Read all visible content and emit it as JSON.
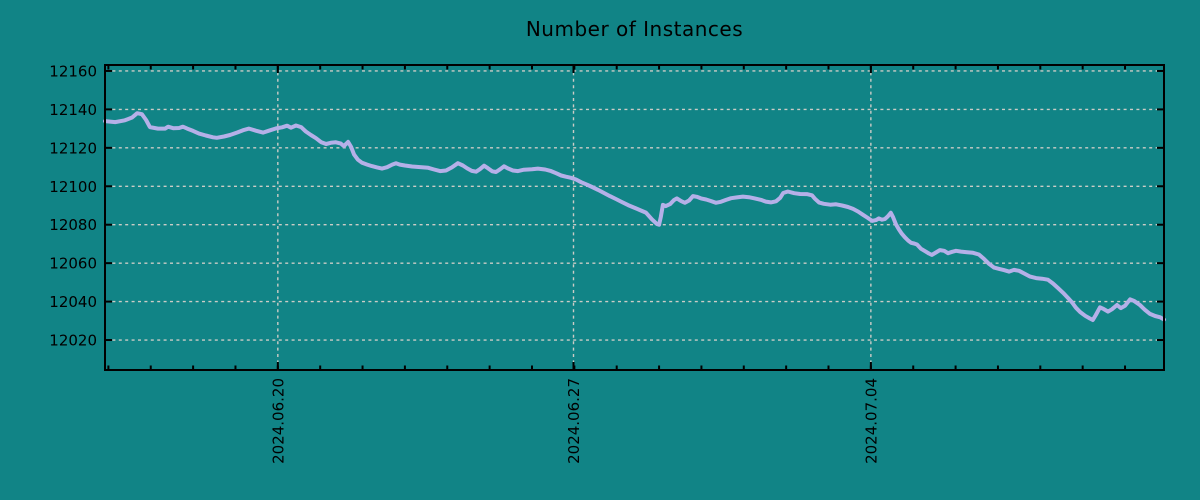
{
  "colors": {
    "background": "#118486",
    "line": "#b5b0e8",
    "grid": "#ccccc6",
    "axis": "#000000",
    "text": "#000000"
  },
  "chart_data": {
    "type": "line",
    "title": "Number of Instances",
    "xlabel": "",
    "ylabel": "",
    "legend": "none",
    "grid": "dashed",
    "x_unit": "days (date axis)",
    "x_range_days": [
      0,
      25
    ],
    "x_start_date": "2024.06.16",
    "x_end_date": "2024.07.11",
    "xticks": [
      {
        "day": 4.08,
        "label": "2024.06.20"
      },
      {
        "day": 11.06,
        "label": "2024.06.27"
      },
      {
        "day": 18.08,
        "label": "2024.07.04"
      }
    ],
    "x_minor_tick_step_days": 1,
    "x_minor_tick_offset_days": 0.08,
    "ylim": [
      12004.4,
      12163.1
    ],
    "yticks": [
      12020,
      12040,
      12060,
      12080,
      12100,
      12120,
      12140,
      12160
    ],
    "series": [
      {
        "name": "Number of Instances",
        "color": "#b5b0e8",
        "points": [
          [
            0,
            12133.9
          ],
          [
            0.24,
            12133.4
          ],
          [
            0.47,
            12134.3
          ],
          [
            0.64,
            12135.8
          ],
          [
            0.76,
            12138
          ],
          [
            0.87,
            12137.5
          ],
          [
            0.97,
            12134.5
          ],
          [
            1.06,
            12130.8
          ],
          [
            1.25,
            12130
          ],
          [
            1.42,
            12130
          ],
          [
            1.49,
            12131
          ],
          [
            1.61,
            12130.2
          ],
          [
            1.75,
            12130.3
          ],
          [
            1.84,
            12131
          ],
          [
            1.94,
            12130
          ],
          [
            2.08,
            12128.8
          ],
          [
            2.22,
            12127.4
          ],
          [
            2.38,
            12126.4
          ],
          [
            2.55,
            12125.5
          ],
          [
            2.64,
            12125.2
          ],
          [
            2.81,
            12125.9
          ],
          [
            2.95,
            12126.7
          ],
          [
            3.12,
            12128
          ],
          [
            3.26,
            12129.2
          ],
          [
            3.4,
            12130
          ],
          [
            3.56,
            12128.9
          ],
          [
            3.73,
            12127.9
          ],
          [
            3.87,
            12128.9
          ],
          [
            4.04,
            12130.1
          ],
          [
            4.18,
            12130.7
          ],
          [
            4.3,
            12131.5
          ],
          [
            4.39,
            12130.5
          ],
          [
            4.51,
            12131.6
          ],
          [
            4.63,
            12130.8
          ],
          [
            4.74,
            12128.5
          ],
          [
            4.86,
            12126.7
          ],
          [
            4.98,
            12125
          ],
          [
            5.1,
            12123
          ],
          [
            5.22,
            12122
          ],
          [
            5.33,
            12122.6
          ],
          [
            5.45,
            12122.9
          ],
          [
            5.57,
            12122.2
          ],
          [
            5.64,
            12120.9
          ],
          [
            5.74,
            12123.1
          ],
          [
            5.81,
            12120.5
          ],
          [
            5.88,
            12116.5
          ],
          [
            5.97,
            12113.8
          ],
          [
            6.07,
            12112.2
          ],
          [
            6.19,
            12111.3
          ],
          [
            6.3,
            12110.5
          ],
          [
            6.42,
            12109.8
          ],
          [
            6.54,
            12109.2
          ],
          [
            6.66,
            12109.9
          ],
          [
            6.78,
            12111.3
          ],
          [
            6.87,
            12112
          ],
          [
            6.96,
            12111.3
          ],
          [
            7.08,
            12110.8
          ],
          [
            7.25,
            12110.3
          ],
          [
            7.44,
            12110
          ],
          [
            7.63,
            12109.6
          ],
          [
            7.77,
            12108.7
          ],
          [
            7.91,
            12107.9
          ],
          [
            8.05,
            12108.2
          ],
          [
            8.19,
            12109.8
          ],
          [
            8.33,
            12112
          ],
          [
            8.45,
            12110.8
          ],
          [
            8.55,
            12109.3
          ],
          [
            8.66,
            12108
          ],
          [
            8.76,
            12107.6
          ],
          [
            8.85,
            12108.9
          ],
          [
            8.95,
            12110.7
          ],
          [
            9.04,
            12109.4
          ],
          [
            9.14,
            12107.8
          ],
          [
            9.23,
            12107.4
          ],
          [
            9.33,
            12108.9
          ],
          [
            9.42,
            12110.4
          ],
          [
            9.51,
            12109.3
          ],
          [
            9.63,
            12108.2
          ],
          [
            9.75,
            12107.9
          ],
          [
            9.89,
            12108.6
          ],
          [
            10.08,
            12108.9
          ],
          [
            10.22,
            12109.2
          ],
          [
            10.39,
            12108.7
          ],
          [
            10.53,
            12107.9
          ],
          [
            10.65,
            12106.8
          ],
          [
            10.77,
            12105.6
          ],
          [
            10.88,
            12105
          ],
          [
            11,
            12104.4
          ],
          [
            11.12,
            12103.5
          ],
          [
            11.24,
            12102.1
          ],
          [
            11.38,
            12100.8
          ],
          [
            11.5,
            12099.6
          ],
          [
            11.64,
            12098.1
          ],
          [
            11.78,
            12096.5
          ],
          [
            11.92,
            12094.9
          ],
          [
            12.06,
            12093.4
          ],
          [
            12.2,
            12091.8
          ],
          [
            12.35,
            12090.2
          ],
          [
            12.49,
            12088.9
          ],
          [
            12.63,
            12087.6
          ],
          [
            12.77,
            12086.3
          ],
          [
            12.91,
            12082.8
          ],
          [
            13.03,
            12080.3
          ],
          [
            13.08,
            12080
          ],
          [
            13.12,
            12084
          ],
          [
            13.17,
            12090.3
          ],
          [
            13.24,
            12089.7
          ],
          [
            13.34,
            12090.7
          ],
          [
            13.43,
            12092.8
          ],
          [
            13.5,
            12093.7
          ],
          [
            13.6,
            12092.3
          ],
          [
            13.69,
            12091.4
          ],
          [
            13.79,
            12092.6
          ],
          [
            13.88,
            12094.9
          ],
          [
            13.97,
            12094.5
          ],
          [
            14.07,
            12093.7
          ],
          [
            14.19,
            12093.1
          ],
          [
            14.31,
            12092.3
          ],
          [
            14.42,
            12091.4
          ],
          [
            14.54,
            12091.9
          ],
          [
            14.66,
            12092.9
          ],
          [
            14.78,
            12093.8
          ],
          [
            14.92,
            12094.2
          ],
          [
            15.06,
            12094.6
          ],
          [
            15.2,
            12094.3
          ],
          [
            15.34,
            12093.7
          ],
          [
            15.49,
            12092.9
          ],
          [
            15.6,
            12092
          ],
          [
            15.72,
            12091.6
          ],
          [
            15.84,
            12092.2
          ],
          [
            15.94,
            12094
          ],
          [
            16.01,
            12096.5
          ],
          [
            16.12,
            12097.3
          ],
          [
            16.27,
            12096.4
          ],
          [
            16.41,
            12096
          ],
          [
            16.57,
            12095.9
          ],
          [
            16.69,
            12095.3
          ],
          [
            16.76,
            12093.5
          ],
          [
            16.86,
            12091.5
          ],
          [
            16.97,
            12090.9
          ],
          [
            17.12,
            12090.4
          ],
          [
            17.26,
            12090.6
          ],
          [
            17.4,
            12090
          ],
          [
            17.54,
            12089.2
          ],
          [
            17.66,
            12088.2
          ],
          [
            17.78,
            12086.8
          ],
          [
            17.89,
            12085.2
          ],
          [
            18.01,
            12083.5
          ],
          [
            18.11,
            12082
          ],
          [
            18.2,
            12082.4
          ],
          [
            18.27,
            12083.3
          ],
          [
            18.34,
            12082.6
          ],
          [
            18.41,
            12082.9
          ],
          [
            18.48,
            12084.3
          ],
          [
            18.55,
            12086.2
          ],
          [
            18.6,
            12084.1
          ],
          [
            18.67,
            12080.2
          ],
          [
            18.74,
            12077.6
          ],
          [
            18.81,
            12075.3
          ],
          [
            18.88,
            12073.5
          ],
          [
            18.96,
            12071.8
          ],
          [
            19.03,
            12070.6
          ],
          [
            19.1,
            12070.2
          ],
          [
            19.17,
            12069.7
          ],
          [
            19.26,
            12067.5
          ],
          [
            19.36,
            12066.2
          ],
          [
            19.45,
            12065
          ],
          [
            19.52,
            12064.3
          ],
          [
            19.62,
            12065.6
          ],
          [
            19.71,
            12066.8
          ],
          [
            19.81,
            12066.4
          ],
          [
            19.9,
            12065.2
          ],
          [
            20,
            12065.9
          ],
          [
            20.09,
            12066.4
          ],
          [
            20.21,
            12066
          ],
          [
            20.35,
            12065.7
          ],
          [
            20.49,
            12065.4
          ],
          [
            20.63,
            12064.5
          ],
          [
            20.75,
            12062.2
          ],
          [
            20.87,
            12059.6
          ],
          [
            20.99,
            12057.7
          ],
          [
            21.11,
            12057
          ],
          [
            21.22,
            12056.4
          ],
          [
            21.34,
            12055.6
          ],
          [
            21.46,
            12056.5
          ],
          [
            21.58,
            12056
          ],
          [
            21.7,
            12054.6
          ],
          [
            21.84,
            12053
          ],
          [
            21.98,
            12052.2
          ],
          [
            22.12,
            12051.9
          ],
          [
            22.26,
            12051.4
          ],
          [
            22.38,
            12049.4
          ],
          [
            22.5,
            12047
          ],
          [
            22.62,
            12044.5
          ],
          [
            22.73,
            12042
          ],
          [
            22.83,
            12039.5
          ],
          [
            22.92,
            12036.8
          ],
          [
            23.02,
            12034.6
          ],
          [
            23.14,
            12032.6
          ],
          [
            23.25,
            12031.2
          ],
          [
            23.32,
            12030.4
          ],
          [
            23.39,
            12033
          ],
          [
            23.49,
            12037
          ],
          [
            23.58,
            12036.1
          ],
          [
            23.68,
            12034.8
          ],
          [
            23.77,
            12036
          ],
          [
            23.89,
            12038.2
          ],
          [
            23.98,
            12036.6
          ],
          [
            24.08,
            12037.8
          ],
          [
            24.2,
            12041.2
          ],
          [
            24.29,
            12040.4
          ],
          [
            24.43,
            12038.2
          ],
          [
            24.55,
            12035.7
          ],
          [
            24.67,
            12033.6
          ],
          [
            24.79,
            12032.5
          ],
          [
            24.91,
            12031.8
          ],
          [
            25,
            12030.6
          ]
        ]
      }
    ]
  }
}
